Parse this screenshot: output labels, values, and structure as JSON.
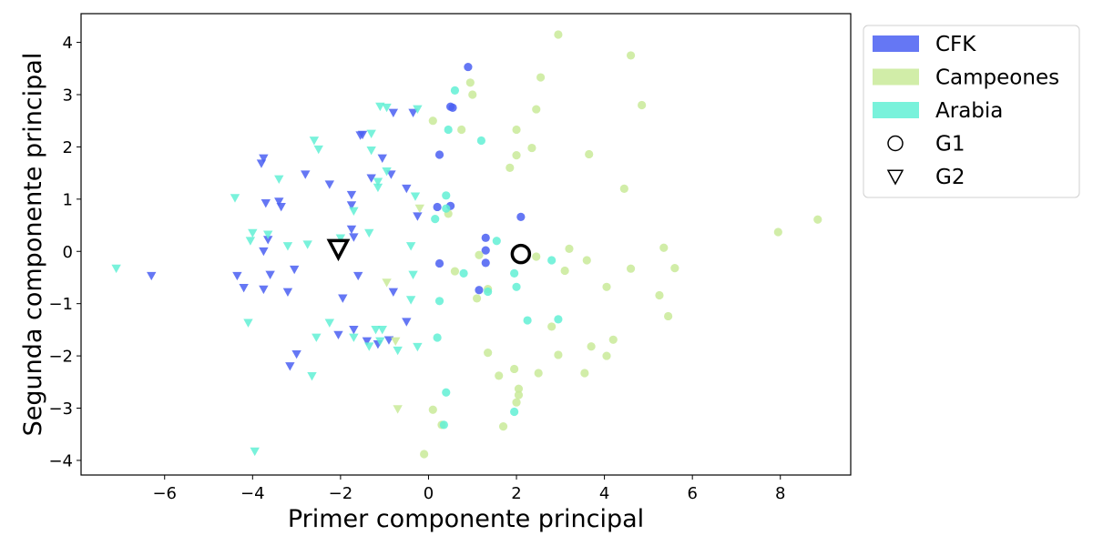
{
  "chart_data": {
    "type": "scatter",
    "title": "",
    "xlabel": "Primer componente principal",
    "ylabel": "Segunda componente principal",
    "xlim": [
      -7.9,
      9.6
    ],
    "ylim": [
      -4.28,
      4.55
    ],
    "xticks": [
      -6,
      -4,
      -2,
      0,
      2,
      4,
      6,
      8
    ],
    "yticks": [
      -4,
      -3,
      -2,
      -1,
      0,
      1,
      2,
      3,
      4
    ],
    "xtick_labels": [
      "−6",
      "−4",
      "−2",
      "0",
      "2",
      "4",
      "6",
      "8"
    ],
    "ytick_labels": [
      "−4",
      "−3",
      "−2",
      "−1",
      "0",
      "1",
      "2",
      "3",
      "4"
    ],
    "grid": false,
    "legend_position": "outside-right-top",
    "series": [
      {
        "name": "CFK",
        "color": "#4a5ff2",
        "points": {
          "circle": [
            [
              0.9,
              3.53
            ],
            [
              0.5,
              2.77
            ],
            [
              0.55,
              2.75
            ],
            [
              0.25,
              1.85
            ],
            [
              0.2,
              0.85
            ],
            [
              0.5,
              0.87
            ],
            [
              2.1,
              0.66
            ],
            [
              1.3,
              0.26
            ],
            [
              1.3,
              0.02
            ],
            [
              0.25,
              -0.23
            ],
            [
              1.3,
              -0.22
            ],
            [
              1.15,
              -0.74
            ]
          ],
          "triangle": [
            [
              -6.3,
              -0.47
            ],
            [
              -4.35,
              -0.47
            ],
            [
              -4.2,
              -0.7
            ],
            [
              -3.8,
              1.68
            ],
            [
              -3.75,
              1.78
            ],
            [
              -3.7,
              0.92
            ],
            [
              -3.75,
              0.0
            ],
            [
              -3.65,
              0.22
            ],
            [
              -3.6,
              -0.45
            ],
            [
              -3.75,
              -0.73
            ],
            [
              -3.4,
              0.95
            ],
            [
              -3.35,
              0.85
            ],
            [
              -3.2,
              -0.78
            ],
            [
              -3.05,
              -0.35
            ],
            [
              -3.0,
              -1.97
            ],
            [
              -3.15,
              -2.2
            ],
            [
              -2.8,
              1.47
            ],
            [
              -2.25,
              1.28
            ],
            [
              -1.75,
              1.08
            ],
            [
              -1.75,
              0.88
            ],
            [
              -1.75,
              0.42
            ],
            [
              -1.7,
              0.27
            ],
            [
              -1.55,
              2.22
            ],
            [
              -1.5,
              2.23
            ],
            [
              -1.3,
              1.4
            ],
            [
              -1.05,
              1.78
            ],
            [
              -0.85,
              1.47
            ],
            [
              -1.6,
              -0.47
            ],
            [
              -1.95,
              -0.9
            ],
            [
              -2.05,
              -1.6
            ],
            [
              -1.7,
              -1.5
            ],
            [
              -1.4,
              -1.72
            ],
            [
              -1.15,
              -1.78
            ],
            [
              -0.9,
              -1.7
            ],
            [
              -0.8,
              -0.78
            ],
            [
              -0.5,
              -1.35
            ],
            [
              -0.8,
              2.65
            ],
            [
              -0.35,
              2.65
            ],
            [
              -0.5,
              1.2
            ],
            [
              -0.25,
              0.67
            ]
          ],
          "big": []
        }
      },
      {
        "name": "Campeones",
        "color": "#c9ea99",
        "points": {
          "circle": [
            [
              2.95,
              4.15
            ],
            [
              4.6,
              3.75
            ],
            [
              2.55,
              3.33
            ],
            [
              0.95,
              3.23
            ],
            [
              1.0,
              3.0
            ],
            [
              4.85,
              2.8
            ],
            [
              2.45,
              2.72
            ],
            [
              0.1,
              2.5
            ],
            [
              0.75,
              2.33
            ],
            [
              2.0,
              2.33
            ],
            [
              2.35,
              1.98
            ],
            [
              2.0,
              1.84
            ],
            [
              3.65,
              1.86
            ],
            [
              1.85,
              1.6
            ],
            [
              4.45,
              1.2
            ],
            [
              8.85,
              0.61
            ],
            [
              0.45,
              0.72
            ],
            [
              7.95,
              0.37
            ],
            [
              5.35,
              0.07
            ],
            [
              3.2,
              0.05
            ],
            [
              1.15,
              -0.07
            ],
            [
              2.45,
              -0.1
            ],
            [
              3.6,
              -0.17
            ],
            [
              5.6,
              -0.32
            ],
            [
              4.6,
              -0.33
            ],
            [
              0.6,
              -0.38
            ],
            [
              3.1,
              -0.37
            ],
            [
              1.1,
              -0.9
            ],
            [
              4.05,
              -0.68
            ],
            [
              5.25,
              -0.84
            ],
            [
              1.35,
              -0.72
            ],
            [
              5.45,
              -1.24
            ],
            [
              2.8,
              -1.44
            ],
            [
              4.2,
              -1.69
            ],
            [
              3.7,
              -1.82
            ],
            [
              1.35,
              -1.94
            ],
            [
              2.95,
              -1.98
            ],
            [
              4.05,
              -2.0
            ],
            [
              1.95,
              -2.25
            ],
            [
              1.6,
              -2.38
            ],
            [
              2.5,
              -2.33
            ],
            [
              3.55,
              -2.33
            ],
            [
              2.05,
              -2.63
            ],
            [
              2.05,
              -2.75
            ],
            [
              2.0,
              -2.89
            ],
            [
              0.1,
              -3.03
            ],
            [
              1.7,
              -3.35
            ],
            [
              0.3,
              -3.32
            ],
            [
              -0.1,
              -3.88
            ]
          ],
          "triangle": [
            [
              -0.95,
              -0.6
            ],
            [
              -0.75,
              -1.72
            ],
            [
              -0.7,
              -3.02
            ],
            [
              -0.2,
              0.82
            ]
          ],
          "big": []
        }
      },
      {
        "name": "Arabia",
        "color": "#61f0d5",
        "points": {
          "circle": [
            [
              0.6,
              3.08
            ],
            [
              0.45,
              2.33
            ],
            [
              1.2,
              2.12
            ],
            [
              0.4,
              1.07
            ],
            [
              0.4,
              0.82
            ],
            [
              0.15,
              0.62
            ],
            [
              1.55,
              0.2
            ],
            [
              2.8,
              -0.17
            ],
            [
              0.8,
              -0.42
            ],
            [
              1.95,
              -0.42
            ],
            [
              1.35,
              -0.77
            ],
            [
              2.0,
              -0.68
            ],
            [
              0.25,
              -0.95
            ],
            [
              2.25,
              -1.32
            ],
            [
              2.95,
              -1.3
            ],
            [
              0.2,
              -1.65
            ],
            [
              0.4,
              -2.7
            ],
            [
              0.35,
              -3.32
            ],
            [
              1.95,
              -3.07
            ]
          ],
          "triangle": [
            [
              -0.95,
              2.75
            ],
            [
              -1.1,
              2.77
            ],
            [
              -0.25,
              2.72
            ],
            [
              -1.3,
              2.25
            ],
            [
              -2.6,
              2.12
            ],
            [
              -2.5,
              1.95
            ],
            [
              -1.3,
              1.93
            ],
            [
              -0.95,
              1.53
            ],
            [
              -3.4,
              1.38
            ],
            [
              -1.15,
              1.33
            ],
            [
              -1.15,
              1.22
            ],
            [
              -4.4,
              1.02
            ],
            [
              -0.3,
              1.05
            ],
            [
              -1.7,
              0.77
            ],
            [
              -4.0,
              0.35
            ],
            [
              -3.65,
              0.32
            ],
            [
              -2.0,
              0.25
            ],
            [
              -1.35,
              0.35
            ],
            [
              -4.05,
              0.2
            ],
            [
              -3.2,
              0.1
            ],
            [
              -2.75,
              0.13
            ],
            [
              -0.4,
              0.1
            ],
            [
              -7.1,
              -0.33
            ],
            [
              -0.35,
              -0.45
            ],
            [
              -0.4,
              -0.93
            ],
            [
              -4.1,
              -1.37
            ],
            [
              -2.25,
              -1.37
            ],
            [
              -1.2,
              -1.5
            ],
            [
              -1.05,
              -1.5
            ],
            [
              -2.55,
              -1.65
            ],
            [
              -1.7,
              -1.65
            ],
            [
              -1.1,
              -1.72
            ],
            [
              -1.35,
              -1.82
            ],
            [
              -0.25,
              -1.83
            ],
            [
              -0.7,
              -1.9
            ],
            [
              -2.65,
              -2.39
            ],
            [
              -3.95,
              -3.83
            ]
          ],
          "big": []
        }
      }
    ],
    "group_markers": [
      {
        "name": "G1",
        "marker": "circle",
        "x": 2.1,
        "y": -0.05
      },
      {
        "name": "G2",
        "marker": "triangle",
        "x": -2.05,
        "y": 0.05
      }
    ],
    "legend": [
      {
        "label": "CFK",
        "kind": "patch",
        "color": "#4a5ff2"
      },
      {
        "label": "Campeones",
        "kind": "patch",
        "color": "#c9ea99"
      },
      {
        "label": "Arabia",
        "kind": "patch",
        "color": "#61f0d5"
      },
      {
        "label": "G1",
        "kind": "circle"
      },
      {
        "label": "G2",
        "kind": "triangle"
      }
    ]
  }
}
